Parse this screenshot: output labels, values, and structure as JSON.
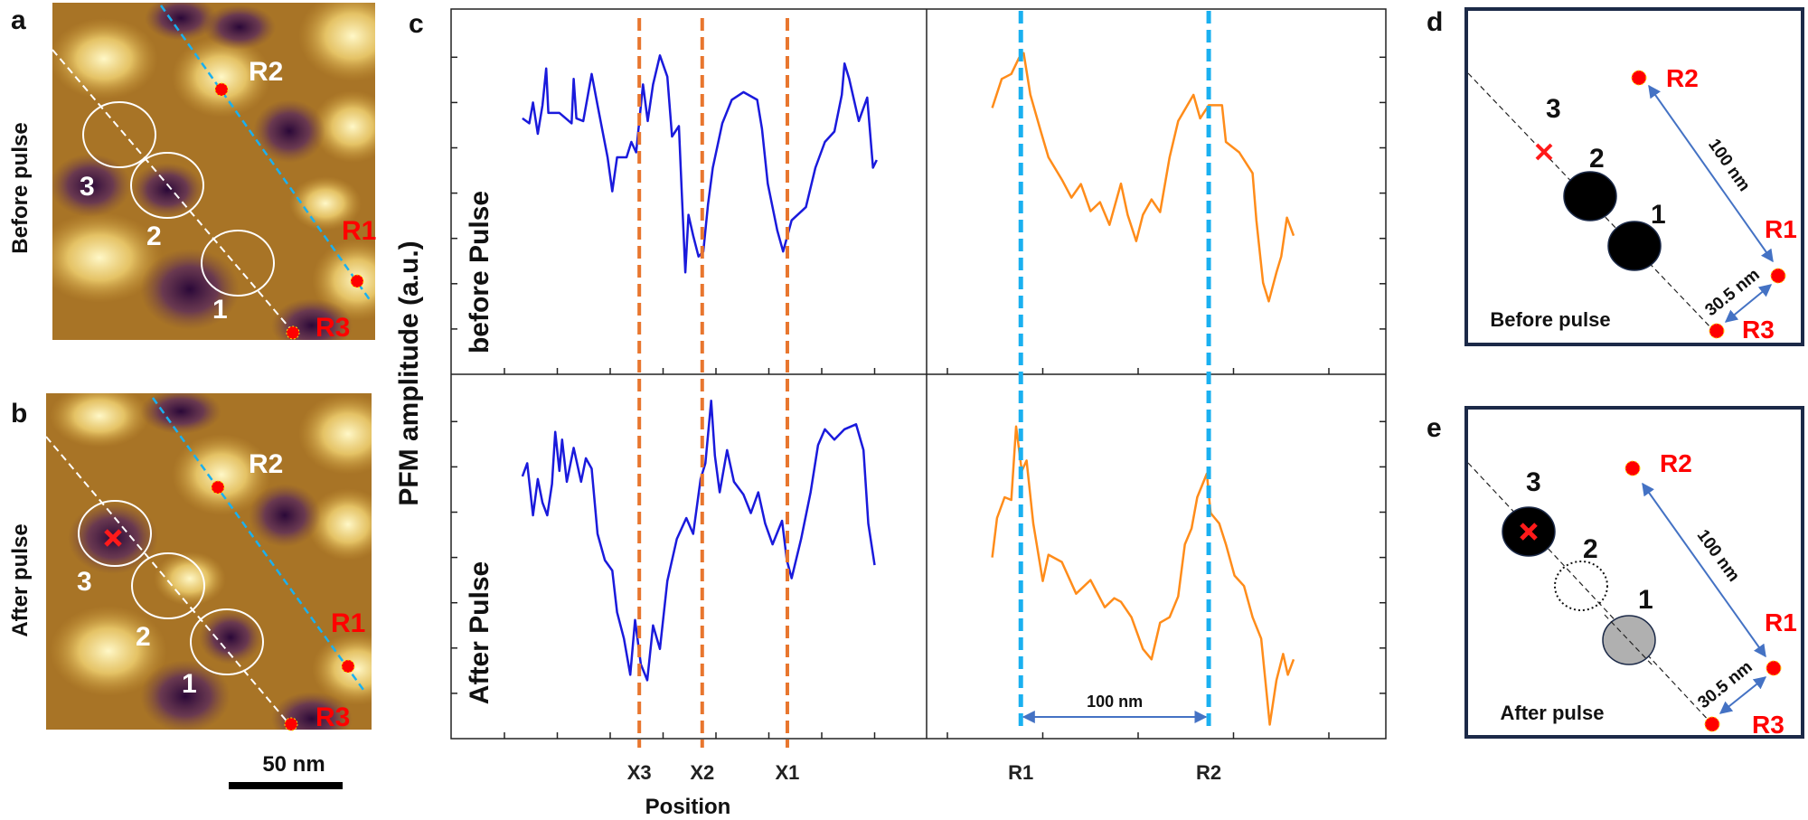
{
  "panels": {
    "a": "a",
    "b": "b",
    "c": "c",
    "d": "d",
    "e": "e"
  },
  "afm": {
    "before_label": "Before pulse",
    "after_label": "After pulse",
    "scale_bar": "50 nm",
    "sites": {
      "s1": "1",
      "s2": "2",
      "s3": "3"
    },
    "refs": {
      "r1": "R1",
      "r2": "R2",
      "r3": "R3"
    }
  },
  "chart_data": {
    "type": "line",
    "ylabel": "PFM amplitude (a.u.)",
    "xlabel": "Position",
    "row_labels": {
      "top": "before Pulse",
      "bottom": "After Pulse"
    },
    "colors": {
      "left": "#1a1adc",
      "right": "#ff8c1a",
      "x_markers": "#e8762e",
      "r_markers": "#1ab0f0",
      "arrow": "#4472c4"
    },
    "left_markers": [
      {
        "label": "X3",
        "x": 2.55
      },
      {
        "label": "X2",
        "x": 3.74
      },
      {
        "label": "X1",
        "x": 5.35
      }
    ],
    "right_markers": [
      {
        "label": "R1",
        "x": 0.77
      },
      {
        "label": "R2",
        "x": 2.74
      }
    ],
    "distance_label": "100 nm",
    "left_xticks": [
      0,
      1,
      2,
      3,
      4,
      5,
      6,
      7
    ],
    "right_xticks": [
      0,
      1,
      2,
      3,
      4
    ],
    "yticks": [
      1,
      2,
      3,
      4,
      5,
      6,
      7
    ],
    "series": [
      {
        "name": "before Pulse (X line)",
        "panel": "top-left",
        "points": [
          [
            0.34,
            5.65
          ],
          [
            0.47,
            5.54
          ],
          [
            0.54,
            6.0
          ],
          [
            0.63,
            5.31
          ],
          [
            0.72,
            5.94
          ],
          [
            0.79,
            6.75
          ],
          [
            0.83,
            5.77
          ],
          [
            1.04,
            5.77
          ],
          [
            1.27,
            5.54
          ],
          [
            1.31,
            6.52
          ],
          [
            1.36,
            5.65
          ],
          [
            1.49,
            5.59
          ],
          [
            1.65,
            6.63
          ],
          [
            1.76,
            5.94
          ],
          [
            1.95,
            4.79
          ],
          [
            2.04,
            4.04
          ],
          [
            2.13,
            4.79
          ],
          [
            2.31,
            4.79
          ],
          [
            2.4,
            5.13
          ],
          [
            2.49,
            4.9
          ],
          [
            2.62,
            6.4
          ],
          [
            2.71,
            5.59
          ],
          [
            2.81,
            6.4
          ],
          [
            2.94,
            7.04
          ],
          [
            3.08,
            6.57
          ],
          [
            3.17,
            5.25
          ],
          [
            3.3,
            5.48
          ],
          [
            3.35,
            4.09
          ],
          [
            3.42,
            2.25
          ],
          [
            3.48,
            3.52
          ],
          [
            3.57,
            3.06
          ],
          [
            3.67,
            2.6
          ],
          [
            3.76,
            2.71
          ],
          [
            3.85,
            3.75
          ],
          [
            3.94,
            4.56
          ],
          [
            4.12,
            5.54
          ],
          [
            4.3,
            6.06
          ],
          [
            4.52,
            6.23
          ],
          [
            4.78,
            6.06
          ],
          [
            4.87,
            5.42
          ],
          [
            4.98,
            4.21
          ],
          [
            5.16,
            3.17
          ],
          [
            5.27,
            2.71
          ],
          [
            5.43,
            3.4
          ],
          [
            5.7,
            3.69
          ],
          [
            5.88,
            4.56
          ],
          [
            6.06,
            5.13
          ],
          [
            6.24,
            5.36
          ],
          [
            6.38,
            6.17
          ],
          [
            6.43,
            6.86
          ],
          [
            6.52,
            6.52
          ],
          [
            6.7,
            5.59
          ],
          [
            6.86,
            6.11
          ],
          [
            6.97,
            4.56
          ],
          [
            7.04,
            4.73
          ]
        ]
      },
      {
        "name": "After Pulse (X line)",
        "panel": "bottom-left",
        "points": [
          [
            0.34,
            5.79
          ],
          [
            0.43,
            6.08
          ],
          [
            0.54,
            4.93
          ],
          [
            0.63,
            5.73
          ],
          [
            0.72,
            5.21
          ],
          [
            0.81,
            4.93
          ],
          [
            0.9,
            5.62
          ],
          [
            0.96,
            6.77
          ],
          [
            1.04,
            5.91
          ],
          [
            1.09,
            6.6
          ],
          [
            1.18,
            5.67
          ],
          [
            1.31,
            6.42
          ],
          [
            1.45,
            5.67
          ],
          [
            1.54,
            6.19
          ],
          [
            1.65,
            5.96
          ],
          [
            1.76,
            4.52
          ],
          [
            1.9,
            3.94
          ],
          [
            2.04,
            3.71
          ],
          [
            2.13,
            2.79
          ],
          [
            2.26,
            2.21
          ],
          [
            2.38,
            1.41
          ],
          [
            2.47,
            2.62
          ],
          [
            2.58,
            1.64
          ],
          [
            2.7,
            1.29
          ],
          [
            2.81,
            2.5
          ],
          [
            2.94,
            1.98
          ],
          [
            3.08,
            3.48
          ],
          [
            3.26,
            4.41
          ],
          [
            3.44,
            4.87
          ],
          [
            3.57,
            4.52
          ],
          [
            3.71,
            5.73
          ],
          [
            3.8,
            6.08
          ],
          [
            3.91,
            7.46
          ],
          [
            3.98,
            6.25
          ],
          [
            4.07,
            5.44
          ],
          [
            4.21,
            6.37
          ],
          [
            4.34,
            5.67
          ],
          [
            4.52,
            5.39
          ],
          [
            4.66,
            4.98
          ],
          [
            4.8,
            5.44
          ],
          [
            4.93,
            4.75
          ],
          [
            5.07,
            4.29
          ],
          [
            5.25,
            4.81
          ],
          [
            5.34,
            3.94
          ],
          [
            5.43,
            3.54
          ],
          [
            5.61,
            4.41
          ],
          [
            5.79,
            5.44
          ],
          [
            5.93,
            6.48
          ],
          [
            6.06,
            6.83
          ],
          [
            6.24,
            6.6
          ],
          [
            6.43,
            6.83
          ],
          [
            6.65,
            6.94
          ],
          [
            6.79,
            6.37
          ],
          [
            6.88,
            4.75
          ],
          [
            7.0,
            3.83
          ]
        ]
      },
      {
        "name": "before Pulse (R line)",
        "panel": "top-right",
        "points": [
          [
            0.47,
            5.88
          ],
          [
            0.57,
            6.52
          ],
          [
            0.67,
            6.63
          ],
          [
            0.75,
            6.98
          ],
          [
            0.8,
            7.09
          ],
          [
            0.87,
            6.17
          ],
          [
            0.98,
            5.36
          ],
          [
            1.06,
            4.79
          ],
          [
            1.2,
            4.3
          ],
          [
            1.3,
            3.9
          ],
          [
            1.4,
            4.2
          ],
          [
            1.5,
            3.6
          ],
          [
            1.6,
            3.8
          ],
          [
            1.7,
            3.3
          ],
          [
            1.82,
            4.21
          ],
          [
            1.89,
            3.52
          ],
          [
            1.98,
            2.94
          ],
          [
            2.05,
            3.52
          ],
          [
            2.14,
            3.86
          ],
          [
            2.23,
            3.58
          ],
          [
            2.33,
            4.79
          ],
          [
            2.42,
            5.59
          ],
          [
            2.58,
            6.17
          ],
          [
            2.65,
            5.65
          ],
          [
            2.74,
            5.94
          ],
          [
            2.88,
            5.94
          ],
          [
            2.92,
            5.13
          ],
          [
            3.06,
            4.9
          ],
          [
            3.2,
            4.44
          ],
          [
            3.24,
            3.4
          ],
          [
            3.31,
            2.02
          ],
          [
            3.37,
            1.61
          ],
          [
            3.45,
            2.25
          ],
          [
            3.5,
            2.6
          ],
          [
            3.56,
            3.46
          ],
          [
            3.63,
            3.06
          ]
        ]
      },
      {
        "name": "After Pulse (R line)",
        "panel": "bottom-right",
        "points": [
          [
            0.47,
            4.0
          ],
          [
            0.52,
            4.87
          ],
          [
            0.6,
            5.33
          ],
          [
            0.67,
            5.27
          ],
          [
            0.72,
            6.89
          ],
          [
            0.78,
            5.91
          ],
          [
            0.83,
            6.14
          ],
          [
            0.9,
            4.75
          ],
          [
            1.0,
            3.48
          ],
          [
            1.06,
            4.06
          ],
          [
            1.2,
            3.9
          ],
          [
            1.35,
            3.2
          ],
          [
            1.5,
            3.5
          ],
          [
            1.65,
            2.9
          ],
          [
            1.75,
            3.1
          ],
          [
            1.82,
            3.02
          ],
          [
            1.93,
            2.68
          ],
          [
            2.05,
            1.98
          ],
          [
            2.14,
            1.75
          ],
          [
            2.23,
            2.56
          ],
          [
            2.33,
            2.68
          ],
          [
            2.42,
            3.14
          ],
          [
            2.49,
            4.29
          ],
          [
            2.56,
            4.64
          ],
          [
            2.62,
            5.33
          ],
          [
            2.72,
            5.85
          ],
          [
            2.76,
            4.98
          ],
          [
            2.85,
            4.75
          ],
          [
            2.92,
            4.29
          ],
          [
            3.01,
            3.6
          ],
          [
            3.11,
            3.37
          ],
          [
            3.2,
            2.68
          ],
          [
            3.29,
            2.21
          ],
          [
            3.38,
            0.31
          ],
          [
            3.45,
            1.29
          ],
          [
            3.52,
            1.87
          ],
          [
            3.57,
            1.41
          ],
          [
            3.63,
            1.75
          ]
        ]
      }
    ]
  },
  "schematic": {
    "before_caption": "Before pulse",
    "after_caption": "After pulse",
    "dist_long": "100 nm",
    "dist_short": "30.5 nm",
    "sites": {
      "s1": "1",
      "s2": "2",
      "s3": "3"
    },
    "refs": {
      "r1": "R1",
      "r2": "R2",
      "r3": "R3"
    }
  }
}
